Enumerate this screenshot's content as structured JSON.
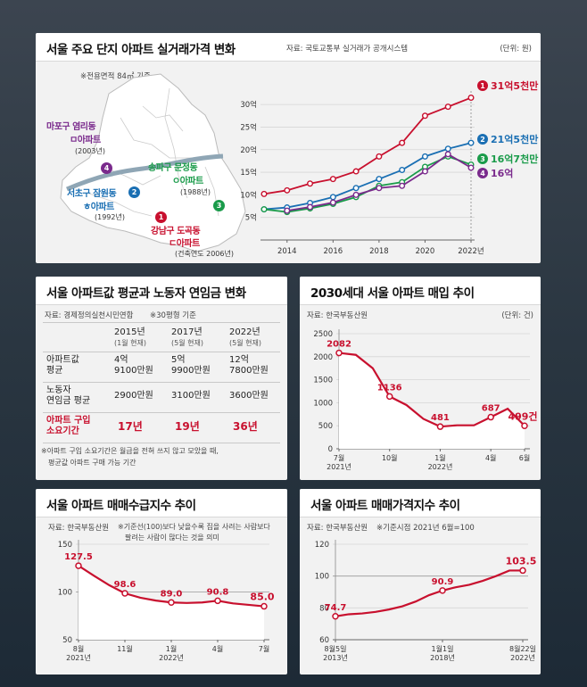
{
  "colors": {
    "red": "#c8102e",
    "blue": "#1a6fb3",
    "green": "#1a9b4a",
    "purple": "#7a2a8c"
  },
  "panel1": {
    "title": "서울 주요 단지 아파트 실거래가격 변화",
    "source": "자료: 국토교통부 실거래가 공개시스템",
    "unit": "(단위: 원)",
    "note": "※전용면적 84㎡ 기준",
    "map": {
      "mapo": {
        "num": "4",
        "name1": "마포구 염리동",
        "name2": "ㅁ아파트",
        "year": "(2003년)"
      },
      "seocho": {
        "num": "2",
        "name1": "서초구 잠원동",
        "name2": "ㅎ아파트",
        "year": "(1992년)"
      },
      "songpa": {
        "num": "3",
        "name1": "송파구 문정동",
        "name2": "ㅇ아파트",
        "year": "(1988년)"
      },
      "gangnam": {
        "num": "1",
        "name1": "강남구 도곡동",
        "name2": "ㄷ아파트",
        "year": "(건축연도 2006년)"
      }
    }
  },
  "panel2": {
    "title": "서울 아파트값 평균과 노동자 연임금 변화",
    "source": "자료: 경제정의실천시민연합",
    "basis": "※30평형 기준",
    "headers": [
      {
        "year": "2015년",
        "sub": "(1월 현재)"
      },
      {
        "year": "2017년",
        "sub": "(5월 현재)"
      },
      {
        "year": "2022년",
        "sub": "(5월 현재)"
      }
    ],
    "rows": [
      {
        "label1": "아파트값",
        "label2": "평균",
        "values": [
          [
            "4억",
            "9100만원"
          ],
          [
            "5억",
            "9900만원"
          ],
          [
            "12억",
            "7800만원"
          ]
        ]
      },
      {
        "label1": "노동자",
        "label2": "연임금 평균",
        "values": [
          [
            "2900만원"
          ],
          [
            "3100만원"
          ],
          [
            "3600만원"
          ]
        ]
      },
      {
        "label1": "아파트 구입",
        "label2": "소요기간",
        "values": [
          [
            "17년"
          ],
          [
            "19년"
          ],
          [
            "36년"
          ]
        ]
      }
    ],
    "footnote1": "※아파트 구입 소요기간은 월급을 전혀 쓰지 않고 모았을 때,",
    "footnote2": "평균값 아파트 구매 가능 기간"
  },
  "panel3": {
    "title": "2030세대 서울 아파트 매입 추이",
    "source": "자료: 한국부동산원",
    "unit": "(단위: 건)"
  },
  "panel4": {
    "title": "서울 아파트 매매수급지수 추이",
    "source": "자료: 한국부동산원",
    "note1": "※기준선(100)보다 낮을수록 집을 사려는 사람보다",
    "note2": "팔려는 사람이 많다는 것을 의미"
  },
  "panel5": {
    "title": "서울 아파트 매매가격지수 추이",
    "source": "자료: 한국부동산원",
    "note": "※기준시점 2021년 6월=100"
  },
  "chart_data": [
    {
      "type": "line",
      "title": "서울 주요 단지 아파트 실거래가격 변화",
      "x": [
        2013,
        2014,
        2015,
        2016,
        2017,
        2018,
        2019,
        2020,
        2021,
        2022
      ],
      "xticks": [
        "2014",
        "2016",
        "2018",
        "2020",
        "2022년"
      ],
      "xtick_values": [
        2014,
        2016,
        2018,
        2020,
        2022
      ],
      "yticks": [
        "5억",
        "10억",
        "15억",
        "20억",
        "25억",
        "30억"
      ],
      "ytick_values": [
        5,
        10,
        15,
        20,
        25,
        30
      ],
      "ylim": [
        0,
        32
      ],
      "series": [
        {
          "name": "1",
          "label": "31억5천만",
          "color": "#c8102e",
          "values": [
            10.2,
            11,
            12.5,
            13.5,
            15.2,
            18.5,
            21.5,
            27.5,
            29.5,
            31.5
          ]
        },
        {
          "name": "2",
          "label": "21억5천만",
          "color": "#1a6fb3",
          "values": [
            6.8,
            7.2,
            8.2,
            9.5,
            11.5,
            13.5,
            15.5,
            18.5,
            20.2,
            21.5
          ]
        },
        {
          "name": "3",
          "label": "16억7천만",
          "color": "#1a9b4a",
          "values": [
            6.8,
            6.2,
            7,
            8,
            9.5,
            12,
            12.8,
            16.2,
            18.5,
            16.7
          ]
        },
        {
          "name": "4",
          "label": "16억",
          "color": "#7a2a8c",
          "values": [
            null,
            6.5,
            7.3,
            8.3,
            10,
            11.5,
            12,
            15.2,
            19,
            16
          ]
        }
      ]
    },
    {
      "type": "table",
      "title": "서울 아파트값 평균과 노동자 연임금 변화",
      "columns": [
        "2015년",
        "2017년",
        "2022년"
      ],
      "rows": [
        [
          "4억 9100만원",
          "5억 9900만원",
          "12억 7800만원"
        ],
        [
          "2900만원",
          "3100만원",
          "3600만원"
        ],
        [
          "17년",
          "19년",
          "36년"
        ]
      ]
    },
    {
      "type": "line",
      "title": "2030세대 서울 아파트 매입 추이",
      "values": [
        2082,
        2040,
        1750,
        1136,
        950,
        650,
        481,
        510,
        510,
        687,
        870,
        499
      ],
      "labels": {
        "0": "2082",
        "3": "1136",
        "6": "481",
        "9": "687",
        "11": "499건"
      },
      "yticks": [
        "0",
        "500",
        "1000",
        "1500",
        "2000",
        "2500"
      ],
      "ytick_values": [
        0,
        500,
        1000,
        1500,
        2000,
        2500
      ],
      "ylim": [
        0,
        2500
      ],
      "xticks": [
        {
          "i": 0,
          "top": "7월",
          "bot": "2021년"
        },
        {
          "i": 3,
          "top": "10월",
          "bot": ""
        },
        {
          "i": 6,
          "top": "1월",
          "bot": "2022년"
        },
        {
          "i": 9,
          "top": "4월",
          "bot": ""
        },
        {
          "i": 11,
          "top": "6월",
          "bot": ""
        }
      ]
    },
    {
      "type": "line",
      "title": "서울 아파트 매매수급지수 추이",
      "values": [
        127.5,
        117,
        107,
        98.6,
        94,
        91,
        89.0,
        88.5,
        89,
        90.8,
        88,
        86.5,
        85.0
      ],
      "labels": {
        "0": "127.5",
        "3": "98.6",
        "6": "89.0",
        "9": "90.8",
        "12": "85.0"
      },
      "yticks": [
        "50",
        "100",
        "150"
      ],
      "ytick_values": [
        50,
        100,
        150
      ],
      "ylim": [
        50,
        150
      ],
      "xticks": [
        {
          "i": 0,
          "top": "8월",
          "bot": "2021년"
        },
        {
          "i": 3,
          "top": "11월",
          "bot": ""
        },
        {
          "i": 6,
          "top": "1월",
          "bot": "2022년"
        },
        {
          "i": 9,
          "top": "4월",
          "bot": ""
        },
        {
          "i": 12,
          "top": "7월",
          "bot": ""
        }
      ]
    },
    {
      "type": "line",
      "title": "서울 아파트 매매가격지수 추이",
      "values": [
        74.7,
        76,
        76.5,
        77.5,
        79,
        81,
        84,
        88,
        90.9,
        93,
        94.5,
        97,
        100,
        103.5,
        103.5
      ],
      "labels": {
        "0": "74.7",
        "8": "90.9",
        "14": "103.5"
      },
      "yticks": [
        "60",
        "80",
        "100",
        "120"
      ],
      "ytick_values": [
        60,
        80,
        100,
        120
      ],
      "ylim": [
        60,
        120
      ],
      "xticks": [
        {
          "i": 0,
          "top": "8월5일",
          "bot": "2013년"
        },
        {
          "i": 8,
          "top": "1월1일",
          "bot": "2018년"
        },
        {
          "i": 14,
          "top": "8월22일",
          "bot": "2022년"
        }
      ]
    }
  ]
}
